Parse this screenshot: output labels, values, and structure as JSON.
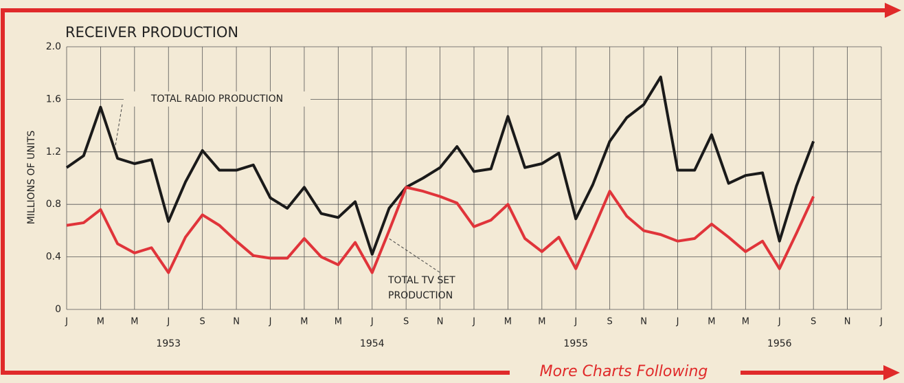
{
  "chart_data": {
    "type": "line",
    "title": "RECEIVER PRODUCTION",
    "y_label": "MILLIONS OF UNITS",
    "footer": "More Charts Following",
    "categories": [
      "J",
      null,
      "M",
      null,
      "M",
      null,
      "J",
      null,
      "S",
      null,
      "N",
      null,
      "J",
      null,
      "M",
      null,
      "M",
      null,
      "J",
      null,
      "S",
      null,
      "N",
      null,
      "J",
      null,
      "M",
      null,
      "M",
      null,
      "J",
      null,
      "S",
      null,
      "N",
      null,
      "J",
      null,
      "M",
      null,
      "M",
      null,
      "J",
      null,
      "S",
      null,
      "N",
      null,
      "J"
    ],
    "years": [
      "1953",
      "1954",
      "1955",
      "1956"
    ],
    "series": [
      {
        "name": "TOTAL RADIO PRODUCTION",
        "color": "#1a1a1a",
        "values": [
          1.08,
          1.17,
          1.54,
          1.15,
          1.11,
          1.14,
          0.67,
          0.97,
          1.21,
          1.06,
          1.06,
          1.1,
          0.85,
          0.77,
          0.93,
          0.73,
          0.7,
          0.82,
          0.42,
          0.77,
          0.93,
          1.0,
          1.08,
          1.24,
          1.05,
          1.07,
          1.47,
          1.08,
          1.11,
          1.19,
          0.69,
          0.95,
          1.28,
          1.46,
          1.56,
          1.77,
          1.06,
          1.06,
          1.33,
          0.96,
          1.02,
          1.04,
          0.52,
          0.94,
          1.28,
          null,
          null,
          null,
          null
        ]
      },
      {
        "name": "TOTAL TV SET PRODUCTION",
        "color": "#e0343a",
        "values": [
          0.64,
          0.66,
          0.76,
          0.5,
          0.43,
          0.47,
          0.28,
          0.55,
          0.72,
          0.64,
          0.52,
          0.41,
          0.39,
          0.39,
          0.54,
          0.4,
          0.34,
          0.51,
          0.28,
          0.6,
          0.93,
          0.9,
          0.86,
          0.81,
          0.63,
          0.68,
          0.8,
          0.54,
          0.44,
          0.55,
          0.31,
          0.6,
          0.9,
          0.71,
          0.6,
          0.57,
          0.52,
          0.54,
          0.65,
          0.55,
          0.44,
          0.52,
          0.31,
          0.58,
          0.86,
          null,
          null,
          null,
          null
        ]
      }
    ],
    "ylim": [
      0,
      2
    ],
    "yticks": [
      0,
      0.4,
      0.8,
      1.2,
      1.6,
      {
        "value": 2,
        "label": "2.0"
      }
    ],
    "grid": true
  }
}
